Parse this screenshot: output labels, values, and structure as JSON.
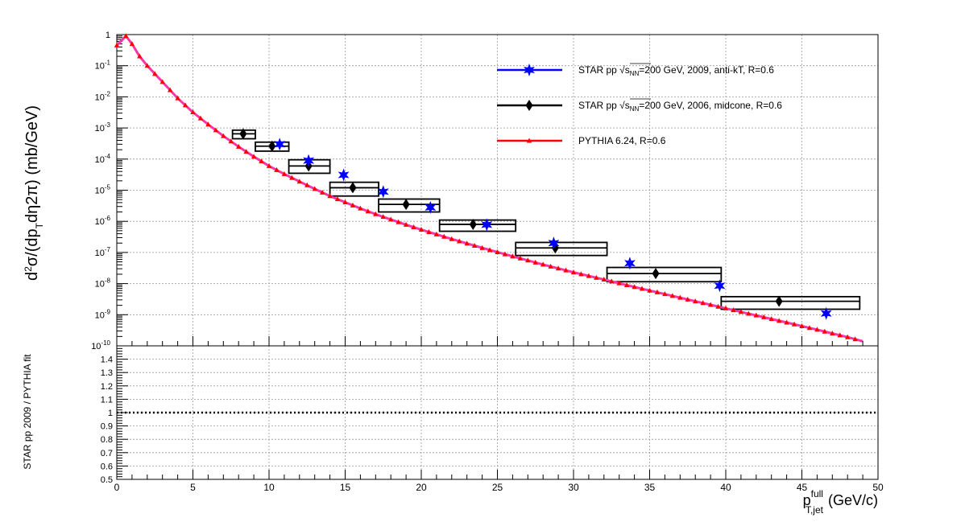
{
  "chart_data": {
    "type": "scatter",
    "x_axis": {
      "label_main": "p",
      "label_sup": "full",
      "label_sub": "T,jet",
      "label_unit": "(GeV/c)",
      "range": [
        0,
        50
      ],
      "ticks": [
        "0",
        "5",
        "10",
        "15",
        "20",
        "25",
        "30",
        "35",
        "40",
        "45",
        "50"
      ],
      "grid": true
    },
    "top_panel": {
      "y_label": "d²σ/(dp_T dη2π) (mb/GeV)",
      "y_scale": "log",
      "y_range": [
        1e-10,
        1
      ],
      "y_ticks": [
        {
          "base": "10",
          "exp": "-10",
          "value": 1e-10
        },
        {
          "base": "10",
          "exp": "-9",
          "value": 1e-09
        },
        {
          "base": "10",
          "exp": "-8",
          "value": 1e-08
        },
        {
          "base": "10",
          "exp": "-7",
          "value": 1e-07
        },
        {
          "base": "10",
          "exp": "-6",
          "value": 1e-06
        },
        {
          "base": "10",
          "exp": "-5",
          "value": 1e-05
        },
        {
          "base": "10",
          "exp": "-4",
          "value": 0.0001
        },
        {
          "base": "10",
          "exp": "-3",
          "value": 0.001
        },
        {
          "base": "10",
          "exp": "-2",
          "value": 0.01
        },
        {
          "base": "10",
          "exp": "-1",
          "value": 0.1
        },
        {
          "base": "1",
          "exp": "",
          "value": 1
        }
      ],
      "legend": [
        {
          "prefix": "STAR pp ",
          "sqrt": "s",
          "sqrt_sub": "NN",
          "suffix": "=200 GeV, 2009, anti-kT, R=0.6",
          "color": "#0000ff",
          "marker": "star"
        },
        {
          "prefix": "STAR pp ",
          "sqrt": "s",
          "sqrt_sub": "NN",
          "suffix": "=200 GeV, 2006, midcone, R=0.6",
          "color": "#000000",
          "marker": "diamond"
        },
        {
          "prefix": "PYTHIA 6.24, R=0.6",
          "sqrt": "",
          "sqrt_sub": "",
          "suffix": "",
          "color": "#ff0000",
          "marker": "triangle"
        }
      ],
      "legend_position": "top-right",
      "series": [
        {
          "name": "STAR pp √sNN=200 GeV, 2009, anti-kT, R=0.6",
          "color": "#0000ff",
          "marker": "star",
          "points": [
            [
              10.7,
              0.0003
            ],
            [
              12.6,
              9e-05
            ],
            [
              14.9,
              3.1e-05
            ],
            [
              17.5,
              9e-06
            ],
            [
              20.6,
              2.8e-06
            ],
            [
              24.3,
              7.8e-07
            ],
            [
              28.7,
              2e-07
            ],
            [
              33.7,
              4.5e-08
            ],
            [
              39.6,
              8.5e-09
            ],
            [
              46.6,
              1.1e-09
            ]
          ]
        },
        {
          "name": "STAR pp √sNN=200 GeV, 2006, midcone, R=0.6",
          "color": "#000000",
          "marker": "diamond",
          "points": [
            [
              8.3,
              0.00065
            ],
            [
              10.2,
              0.00026
            ],
            [
              12.6,
              6e-05
            ],
            [
              15.5,
              1.2e-05
            ],
            [
              19.0,
              3.5e-06
            ],
            [
              23.4,
              8e-07
            ],
            [
              28.8,
              1.4e-07
            ],
            [
              35.4,
              2.1e-08
            ],
            [
              43.5,
              2.7e-09
            ]
          ],
          "sys_boxes": [
            [
              7.6,
              9.1,
              0.00045,
              0.00085
            ],
            [
              9.1,
              11.3,
              0.00018,
              0.00035
            ],
            [
              11.3,
              14.0,
              3.5e-05,
              9.5e-05
            ],
            [
              14.0,
              17.2,
              6.5e-06,
              1.8e-05
            ],
            [
              17.2,
              21.2,
              2e-06,
              5.2e-06
            ],
            [
              21.2,
              26.2,
              4.8e-07,
              1.1e-06
            ],
            [
              26.2,
              32.2,
              8e-08,
              2.1e-07
            ],
            [
              32.2,
              39.7,
              1.15e-08,
              3.3e-08
            ],
            [
              39.7,
              48.8,
              1.5e-09,
              3.8e-09
            ]
          ]
        },
        {
          "name": "PYTHIA 6.24, R=0.6",
          "color": "#ff0000",
          "marker": "triangle",
          "curve_color": "#ff33aa",
          "points": [
            [
              0.0,
              0.45
            ],
            [
              0.6,
              0.9
            ],
            [
              1.0,
              0.5
            ],
            [
              1.5,
              0.2
            ],
            [
              2.0,
              0.1
            ],
            [
              3.0,
              0.03
            ],
            [
              4.0,
              0.009
            ],
            [
              5.0,
              0.0032
            ],
            [
              6.0,
              0.0013
            ],
            [
              7.0,
              0.00055
            ],
            [
              8.0,
              0.00025
            ],
            [
              9.0,
              0.00012
            ],
            [
              10.0,
              6e-05
            ],
            [
              11.0,
              3.3e-05
            ],
            [
              12.0,
              1.9e-05
            ],
            [
              13.0,
              1.1e-05
            ],
            [
              14.0,
              6.5e-06
            ],
            [
              15.0,
              4.1e-06
            ],
            [
              16.0,
              2.6e-06
            ],
            [
              17.0,
              1.7e-06
            ],
            [
              18.0,
              1.15e-06
            ],
            [
              19.0,
              7.8e-07
            ],
            [
              20.0,
              5.4e-07
            ],
            [
              22.0,
              2.7e-07
            ],
            [
              24.0,
              1.4e-07
            ],
            [
              26.0,
              7.5e-08
            ],
            [
              28.0,
              4.1e-08
            ],
            [
              30.0,
              2.3e-08
            ],
            [
              32.0,
              1.35e-08
            ],
            [
              34.0,
              7.8e-09
            ],
            [
              36.0,
              4.6e-09
            ],
            [
              38.0,
              2.7e-09
            ],
            [
              40.0,
              1.6e-09
            ],
            [
              42.0,
              9.5e-10
            ],
            [
              44.0,
              5.6e-10
            ],
            [
              46.0,
              3.3e-10
            ],
            [
              48.0,
              1.9e-10
            ],
            [
              49.0,
              1.4e-10
            ]
          ]
        }
      ]
    },
    "bottom_panel": {
      "y_label": "STAR pp 2009 / PYTHIA fit",
      "y_range": [
        0.5,
        1.5
      ],
      "y_ticks": [
        "0.5",
        "0.6",
        "0.7",
        "0.8",
        "0.9",
        "1",
        "1.1",
        "1.2",
        "1.3",
        "1.4"
      ],
      "reference_line": 1.0,
      "reference_style": "dotted"
    }
  }
}
